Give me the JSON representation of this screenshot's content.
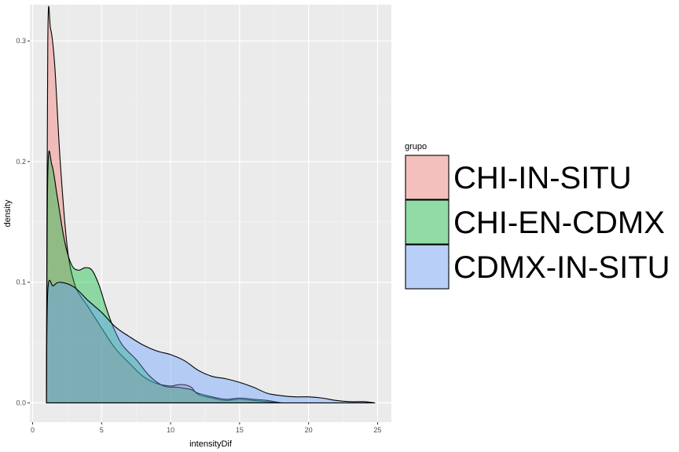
{
  "chart_data": {
    "type": "area",
    "subtype": "density",
    "title": "",
    "xlabel": "intensityDif",
    "ylabel": "density",
    "xlim": [
      -0.2,
      26
    ],
    "ylim": [
      -0.016,
      0.33
    ],
    "xticks": [
      0,
      5,
      10,
      15,
      20,
      25
    ],
    "yticks": [
      0.0,
      0.1,
      0.2,
      0.3
    ],
    "xtick_labels": [
      "0",
      "5",
      "10",
      "15",
      "20",
      "25"
    ],
    "ytick_labels": [
      "0.0",
      "0.1",
      "0.2",
      "0.3"
    ],
    "grid": true,
    "legend": {
      "title": "grupo",
      "position": "right"
    },
    "series": [
      {
        "name": "CHI-IN-SITU",
        "fill": "#F8766D",
        "x": [
          1.0,
          1.1,
          1.3,
          1.6,
          2.0,
          2.5,
          3.0,
          3.5,
          4.0,
          5.0,
          6.0,
          7.0,
          8.0,
          9.0,
          10.0,
          10.5,
          11.0,
          11.5,
          12.0,
          13.0,
          14.0,
          15.0,
          16.0,
          17.0,
          18.0
        ],
        "y": [
          0.0,
          0.3,
          0.31,
          0.28,
          0.2,
          0.13,
          0.1,
          0.088,
          0.08,
          0.062,
          0.045,
          0.033,
          0.022,
          0.016,
          0.014,
          0.015,
          0.015,
          0.013,
          0.007,
          0.004,
          0.002,
          0.003,
          0.002,
          0.001,
          0.0
        ]
      },
      {
        "name": "CHI-EN-CDMX",
        "fill": "#00BA38",
        "x": [
          1.0,
          1.1,
          1.4,
          1.8,
          2.3,
          2.8,
          3.3,
          3.8,
          4.3,
          4.8,
          5.3,
          5.8,
          6.5,
          7.5,
          8.5,
          9.5,
          10.5,
          11.0,
          11.5,
          12.0,
          13.0,
          14.0,
          15.0,
          16.0,
          17.0,
          18.0
        ],
        "y": [
          0.0,
          0.19,
          0.197,
          0.17,
          0.135,
          0.115,
          0.11,
          0.112,
          0.11,
          0.098,
          0.08,
          0.064,
          0.048,
          0.036,
          0.022,
          0.014,
          0.013,
          0.012,
          0.011,
          0.008,
          0.005,
          0.003,
          0.004,
          0.003,
          0.002,
          0.0
        ]
      },
      {
        "name": "CDMX-IN-SITU",
        "fill": "#619CFF",
        "x": [
          1.0,
          1.1,
          1.5,
          2.0,
          3.0,
          4.0,
          5.0,
          6.0,
          7.0,
          8.0,
          9.0,
          10.0,
          11.0,
          12.0,
          13.0,
          14.0,
          15.0,
          16.0,
          17.0,
          18.0,
          19.0,
          20.0,
          21.0,
          22.0,
          23.0,
          24.0,
          24.8
        ],
        "y": [
          0.0,
          0.093,
          0.097,
          0.1,
          0.096,
          0.085,
          0.075,
          0.063,
          0.055,
          0.048,
          0.043,
          0.04,
          0.035,
          0.027,
          0.022,
          0.02,
          0.017,
          0.013,
          0.008,
          0.006,
          0.005,
          0.005,
          0.004,
          0.002,
          0.001,
          0.001,
          0.0
        ]
      }
    ]
  }
}
